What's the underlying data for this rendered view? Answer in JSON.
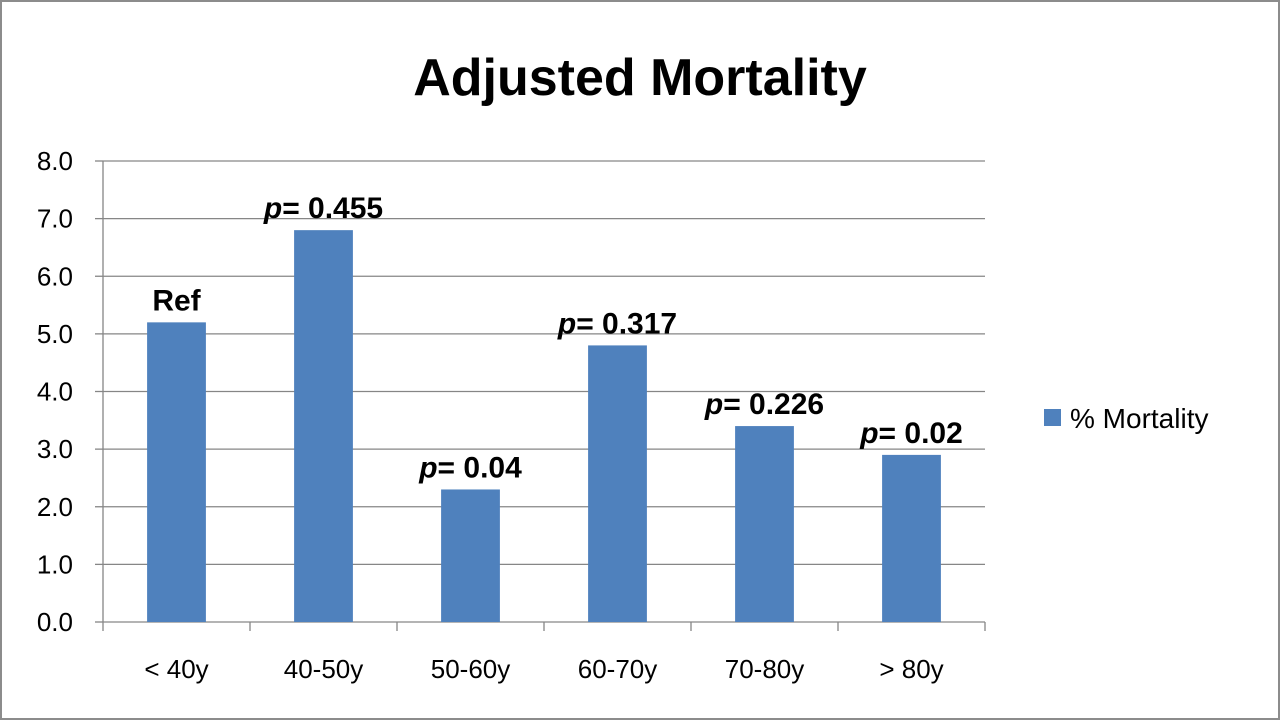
{
  "chart_data": {
    "type": "bar",
    "title": "Adjusted Mortality",
    "categories": [
      "< 40y",
      "40-50y",
      "50-60y",
      "60-70y",
      "70-80y",
      "> 80y"
    ],
    "series": [
      {
        "name": "% Mortality",
        "values": [
          5.2,
          6.8,
          2.3,
          4.8,
          3.4,
          2.9
        ],
        "color": "#4F81BD"
      }
    ],
    "data_labels": [
      {
        "prefix": "",
        "text": "Ref"
      },
      {
        "prefix": "p",
        "text": "= 0.455"
      },
      {
        "prefix": "p",
        "text": "= 0.04"
      },
      {
        "prefix": "p",
        "text": "= 0.317"
      },
      {
        "prefix": "p",
        "text": "= 0.226"
      },
      {
        "prefix": "p",
        "text": "= 0.02"
      }
    ],
    "ylim": [
      0,
      8
    ],
    "yticks": [
      "0.0",
      "1.0",
      "2.0",
      "3.0",
      "4.0",
      "5.0",
      "6.0",
      "7.0",
      "8.0"
    ],
    "grid": true,
    "legend_position": "right",
    "colors": {
      "gridline": "#868686",
      "axis": "#868686",
      "frame": "#8c8c8c"
    }
  }
}
